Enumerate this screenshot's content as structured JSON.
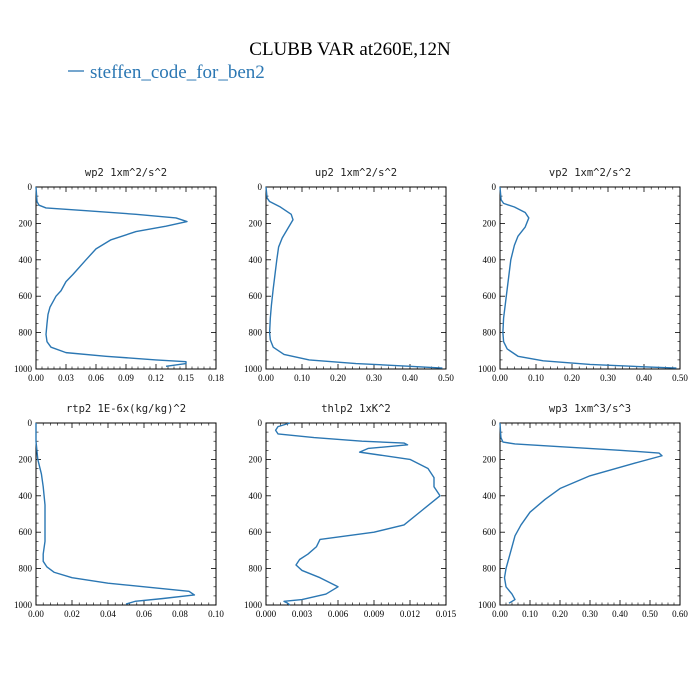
{
  "figure": {
    "title": "CLUBB VAR at260E,12N",
    "legend": [
      {
        "name": "steffen_code_for_ben2",
        "color": "#2b77b3"
      }
    ]
  },
  "chart_data": [
    {
      "type": "line",
      "title": "wp2  1xm^2/s^2",
      "xlim": [
        0,
        0.18
      ],
      "ylim": [
        1000,
        0
      ],
      "xticks": [
        0,
        0.03,
        0.06,
        0.09,
        0.12,
        0.15,
        0.18
      ],
      "xtick_labels": [
        "0.00",
        "0.03",
        "0.06",
        "0.09",
        "0.12",
        "0.15",
        "0.18"
      ],
      "yticks": [
        0,
        200,
        400,
        600,
        800,
        1000
      ],
      "ytick_labels": [
        "0",
        "200",
        "400",
        "600",
        "800",
        "1000"
      ],
      "series": [
        {
          "name": "steffen_code_for_ben2",
          "color": "#2b77b3",
          "x": [
            0.0,
            0.001,
            0.003,
            0.01,
            0.05,
            0.1,
            0.14,
            0.151,
            0.13,
            0.1,
            0.075,
            0.06,
            0.05,
            0.037,
            0.03,
            0.025,
            0.02,
            0.017,
            0.014,
            0.012,
            0.011,
            0.01,
            0.011,
            0.015,
            0.03,
            0.07,
            0.12,
            0.15,
            0.15,
            0.13
          ],
          "y": [
            0,
            80,
            100,
            115,
            130,
            150,
            170,
            190,
            215,
            245,
            290,
            340,
            400,
            480,
            520,
            570,
            600,
            630,
            660,
            700,
            750,
            810,
            850,
            880,
            910,
            930,
            950,
            960,
            970,
            985
          ]
        }
      ]
    },
    {
      "type": "line",
      "title": "up2  1xm^2/s^2",
      "xlim": [
        0,
        0.5
      ],
      "ylim": [
        1000,
        0
      ],
      "xticks": [
        0,
        0.1,
        0.2,
        0.3,
        0.4,
        0.5
      ],
      "xtick_labels": [
        "0.00",
        "0.10",
        "0.20",
        "0.30",
        "0.40",
        "0.50"
      ],
      "yticks": [
        0,
        200,
        400,
        600,
        800,
        1000
      ],
      "ytick_labels": [
        "0",
        "200",
        "400",
        "600",
        "800",
        "1000"
      ],
      "series": [
        {
          "name": "steffen_code_for_ben2",
          "color": "#2b77b3",
          "x": [
            0.0,
            0.003,
            0.01,
            0.04,
            0.07,
            0.075,
            0.06,
            0.045,
            0.035,
            0.03,
            0.025,
            0.02,
            0.015,
            0.012,
            0.01,
            0.012,
            0.02,
            0.05,
            0.12,
            0.25,
            0.4,
            0.49
          ],
          "y": [
            0,
            60,
            80,
            110,
            150,
            180,
            230,
            280,
            330,
            400,
            480,
            560,
            650,
            720,
            800,
            840,
            880,
            920,
            950,
            970,
            985,
            995
          ]
        }
      ]
    },
    {
      "type": "line",
      "title": "vp2  1xm^2/s^2",
      "xlim": [
        0,
        0.5
      ],
      "ylim": [
        1000,
        0
      ],
      "xticks": [
        0,
        0.1,
        0.2,
        0.3,
        0.4,
        0.5
      ],
      "xtick_labels": [
        "0.00",
        "0.10",
        "0.20",
        "0.30",
        "0.40",
        "0.50"
      ],
      "yticks": [
        0,
        200,
        400,
        600,
        800,
        1000
      ],
      "ytick_labels": [
        "0",
        "200",
        "400",
        "600",
        "800",
        "1000"
      ],
      "series": [
        {
          "name": "steffen_code_for_ben2",
          "color": "#2b77b3",
          "x": [
            0.0,
            0.003,
            0.01,
            0.04,
            0.07,
            0.08,
            0.07,
            0.05,
            0.04,
            0.03,
            0.025,
            0.02,
            0.015,
            0.01,
            0.008,
            0.01,
            0.02,
            0.05,
            0.12,
            0.25,
            0.4,
            0.49
          ],
          "y": [
            0,
            70,
            90,
            110,
            140,
            170,
            220,
            270,
            320,
            400,
            480,
            560,
            640,
            720,
            800,
            850,
            890,
            930,
            955,
            975,
            988,
            995
          ]
        }
      ]
    },
    {
      "type": "line",
      "title": "rtp2  1E-6x(kg/kg)^2",
      "xlim": [
        0,
        0.1
      ],
      "ylim": [
        1000,
        0
      ],
      "xticks": [
        0,
        0.02,
        0.04,
        0.06,
        0.08,
        0.1
      ],
      "xtick_labels": [
        "0.00",
        "0.02",
        "0.04",
        "0.06",
        "0.08",
        "0.10"
      ],
      "yticks": [
        0,
        200,
        400,
        600,
        800,
        1000
      ],
      "ytick_labels": [
        "0",
        "200",
        "400",
        "600",
        "800",
        "1000"
      ],
      "series": [
        {
          "name": "steffen_code_for_ben2",
          "color": "#2b77b3",
          "x": [
            0.0,
            0.0,
            0.001,
            0.003,
            0.004,
            0.005,
            0.005,
            0.005,
            0.004,
            0.004,
            0.006,
            0.01,
            0.02,
            0.04,
            0.065,
            0.085,
            0.088,
            0.07,
            0.055,
            0.05
          ],
          "y": [
            0,
            100,
            200,
            280,
            350,
            450,
            550,
            650,
            720,
            760,
            790,
            820,
            850,
            880,
            905,
            925,
            945,
            965,
            980,
            995
          ]
        }
      ]
    },
    {
      "type": "line",
      "title": "thlp2  1xK^2",
      "xlim": [
        0,
        0.015
      ],
      "ylim": [
        1000,
        0
      ],
      "xticks": [
        0,
        0.003,
        0.006,
        0.009,
        0.012,
        0.015
      ],
      "xtick_labels": [
        "0.000",
        "0.003",
        "0.006",
        "0.009",
        "0.012",
        "0.015"
      ],
      "yticks": [
        0,
        200,
        400,
        600,
        800,
        1000
      ],
      "ytick_labels": [
        "0",
        "200",
        "400",
        "600",
        "800",
        "1000"
      ],
      "series": [
        {
          "name": "steffen_code_for_ben2",
          "color": "#2b77b3",
          "x": [
            0.002,
            0.001,
            0.0008,
            0.001,
            0.004,
            0.008,
            0.0115,
            0.0118,
            0.0085,
            0.0078,
            0.012,
            0.0135,
            0.014,
            0.014,
            0.0145,
            0.013,
            0.0115,
            0.009,
            0.0045,
            0.0042,
            0.0035,
            0.0028,
            0.0025,
            0.003,
            0.0045,
            0.006,
            0.005,
            0.003,
            0.0015,
            0.0018,
            0.002
          ],
          "y": [
            0,
            20,
            40,
            60,
            80,
            100,
            110,
            120,
            140,
            160,
            200,
            250,
            300,
            350,
            400,
            480,
            560,
            600,
            640,
            680,
            720,
            750,
            780,
            810,
            850,
            900,
            940,
            970,
            980,
            990,
            1000
          ]
        }
      ]
    },
    {
      "type": "line",
      "title": "wp3  1xm^3/s^3",
      "xlim": [
        0,
        0.6
      ],
      "ylim": [
        1000,
        0
      ],
      "xticks": [
        0,
        0.1,
        0.2,
        0.3,
        0.4,
        0.5,
        0.6
      ],
      "xtick_labels": [
        "0.00",
        "0.10",
        "0.20",
        "0.30",
        "0.40",
        "0.50",
        "0.60"
      ],
      "yticks": [
        0,
        200,
        400,
        600,
        800,
        1000
      ],
      "ytick_labels": [
        "0",
        "200",
        "400",
        "600",
        "800",
        "1000"
      ],
      "series": [
        {
          "name": "steffen_code_for_ben2",
          "color": "#2b77b3",
          "x": [
            0.0,
            0.003,
            0.01,
            0.05,
            0.2,
            0.4,
            0.53,
            0.54,
            0.45,
            0.3,
            0.2,
            0.15,
            0.1,
            0.07,
            0.05,
            0.04,
            0.03,
            0.02,
            0.015,
            0.02,
            0.04,
            0.05,
            0.03
          ],
          "y": [
            0,
            80,
            105,
            115,
            130,
            150,
            165,
            180,
            220,
            290,
            360,
            420,
            490,
            560,
            620,
            680,
            740,
            800,
            850,
            900,
            940,
            970,
            990
          ]
        }
      ]
    }
  ]
}
